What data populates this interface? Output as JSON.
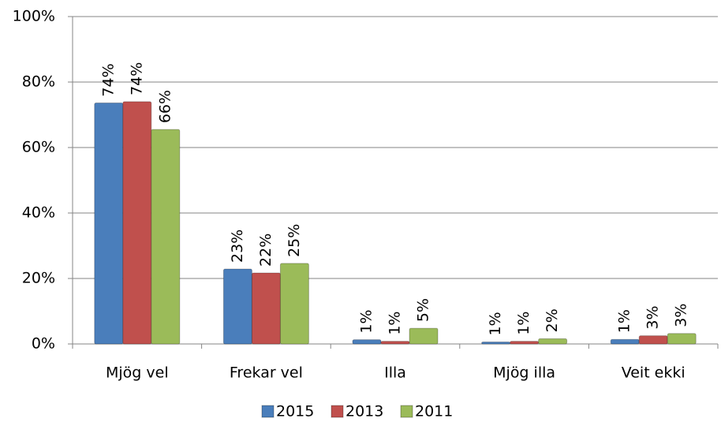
{
  "chart_data": {
    "type": "bar",
    "categories": [
      "Mjög vel",
      "Frekar vel",
      "Illa",
      "Mjög illa",
      "Veit ekki"
    ],
    "series": [
      {
        "name": "2015",
        "color": "#4a7ebb",
        "values": [
          73.6,
          22.9,
          1.3,
          0.6,
          1.4
        ],
        "value_labels": [
          "74%",
          "23%",
          "1%",
          "1%",
          "1%"
        ]
      },
      {
        "name": "2013",
        "color": "#c0504d",
        "values": [
          74,
          21.7,
          0.8,
          0.8,
          2.5
        ],
        "value_labels": [
          "74%",
          "22%",
          "1%",
          "1%",
          "3%"
        ]
      },
      {
        "name": "2011",
        "color": "#9bbb59",
        "values": [
          65.5,
          24.6,
          4.8,
          1.6,
          3.2
        ],
        "value_labels": [
          "66%",
          "25%",
          "5%",
          "2%",
          "3%"
        ]
      }
    ],
    "ylim": [
      0,
      100
    ],
    "yticks": [
      {
        "value": 0,
        "label": "0%"
      },
      {
        "value": 20,
        "label": "20%"
      },
      {
        "value": 40,
        "label": "40%"
      },
      {
        "value": 60,
        "label": "60%"
      },
      {
        "value": 80,
        "label": "80%"
      },
      {
        "value": 100,
        "label": "100%"
      }
    ],
    "grid": true,
    "legend": "bottom"
  }
}
